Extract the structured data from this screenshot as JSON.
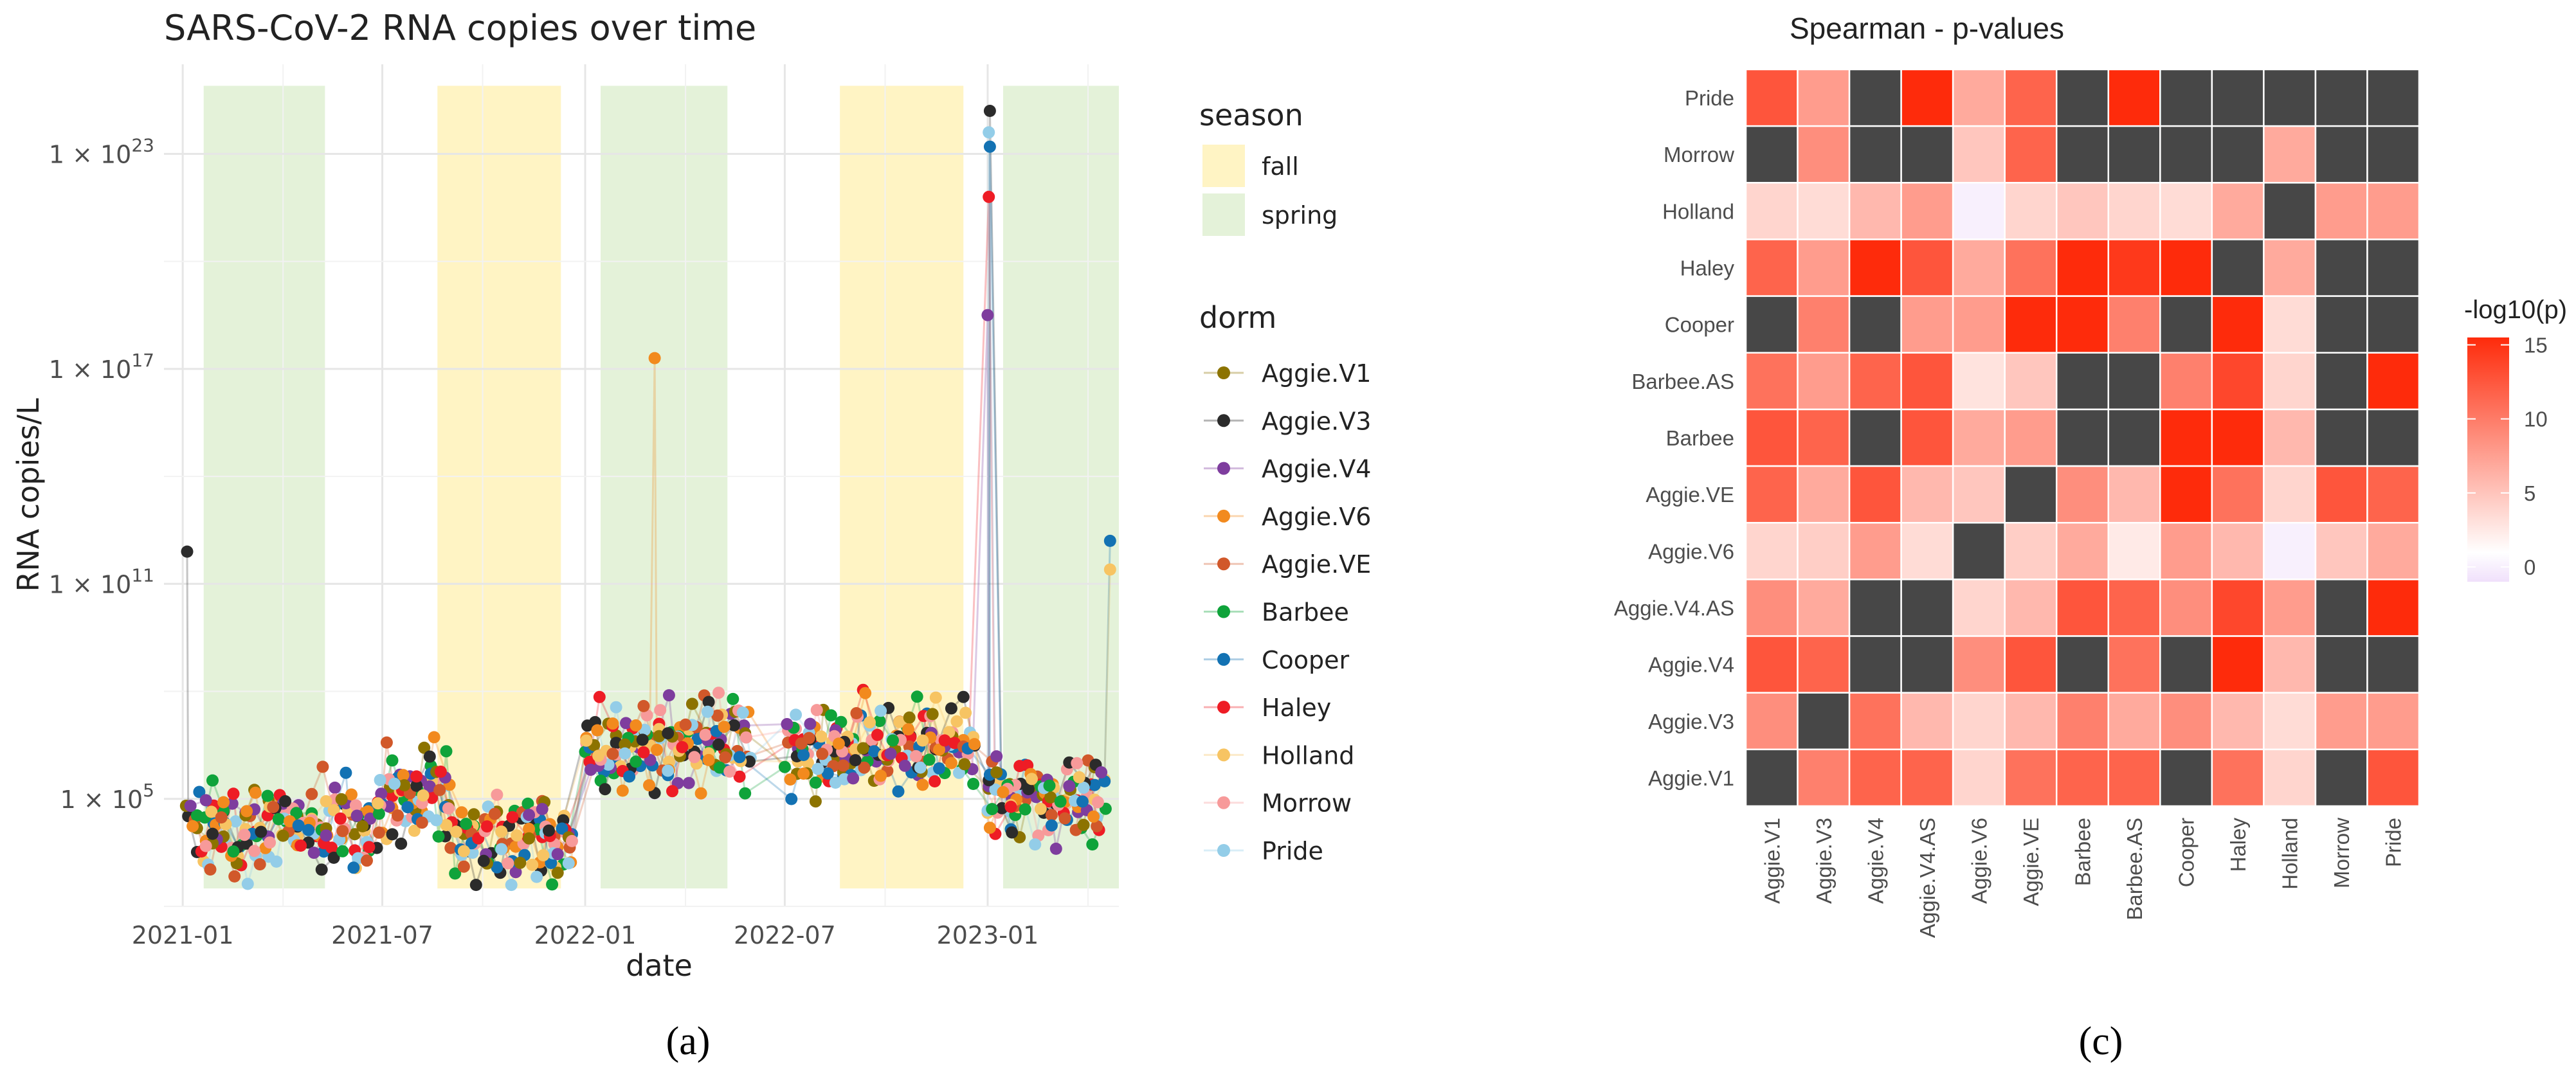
{
  "chart_data": [
    {
      "panel_label": "(a)",
      "type": "line",
      "title": "SARS-CoV-2 RNA copies over time",
      "xlabel": "date",
      "ylabel": "RNA copies/L",
      "yscale": "log10",
      "ylim_log10": [
        2.0,
        25.5
      ],
      "xlim": [
        "2020-12-15",
        "2023-04-30"
      ],
      "x_ticks": [
        "2021-01",
        "2021-07",
        "2022-01",
        "2022-07",
        "2023-01"
      ],
      "y_ticks": [
        {
          "value_log10": 5,
          "base": "1 × 10",
          "exp": "5"
        },
        {
          "value_log10": 11,
          "base": "1 × 10",
          "exp": "11"
        },
        {
          "value_log10": 17,
          "base": "1 × 10",
          "exp": "17"
        },
        {
          "value_log10": 23,
          "base": "1 × 10",
          "exp": "23"
        }
      ],
      "grid": true,
      "season_title": "season",
      "seasons": [
        {
          "name": "fall",
          "color": "#FFF4C4"
        },
        {
          "name": "spring",
          "color": "#E4F2D9"
        }
      ],
      "season_bands": [
        {
          "season": "spring",
          "start": "2021-01-20",
          "end": "2021-05-10"
        },
        {
          "season": "fall",
          "start": "2021-08-20",
          "end": "2021-12-10"
        },
        {
          "season": "spring",
          "start": "2022-01-15",
          "end": "2022-05-10"
        },
        {
          "season": "fall",
          "start": "2022-08-20",
          "end": "2022-12-10"
        },
        {
          "season": "spring",
          "start": "2023-01-15",
          "end": "2023-04-30"
        }
      ],
      "dorm_title": "dorm",
      "dorms": [
        {
          "name": "Aggie.V1",
          "color": "#8C7300"
        },
        {
          "name": "Aggie.V3",
          "color": "#2B2B2B"
        },
        {
          "name": "Aggie.V4",
          "color": "#7E3D9E"
        },
        {
          "name": "Aggie.V6",
          "color": "#F28A1E"
        },
        {
          "name": "Aggie.VE",
          "color": "#D1582A"
        },
        {
          "name": "Barbee",
          "color": "#0FA33A"
        },
        {
          "name": "Cooper",
          "color": "#1372B3"
        },
        {
          "name": "Haley",
          "color": "#EE1C25"
        },
        {
          "name": "Holland",
          "color": "#F7C463"
        },
        {
          "name": "Morrow",
          "color": "#F79A9A"
        },
        {
          "name": "Pride",
          "color": "#93CDE8"
        }
      ],
      "highlights": [
        {
          "series": "Aggie.V3",
          "date": "2021-01-05",
          "log10": 11.9
        },
        {
          "series": "Aggie.V6",
          "date": "2022-03-05",
          "log10": 17.3
        },
        {
          "series": "Aggie.V3",
          "date": "2023-01-03",
          "log10": 24.2
        },
        {
          "series": "Pride",
          "date": "2023-01-02",
          "log10": 23.6
        },
        {
          "series": "Cooper",
          "date": "2023-01-03",
          "log10": 23.2
        },
        {
          "series": "Haley",
          "date": "2023-01-02",
          "log10": 21.8
        },
        {
          "series": "Aggie.V4",
          "date": "2023-01-01",
          "log10": 18.5
        },
        {
          "series": "Cooper",
          "date": "2023-04-22",
          "log10": 12.2
        },
        {
          "series": "Holland",
          "date": "2023-04-22",
          "log10": 11.4
        }
      ]
    },
    {
      "panel_label": "(c)",
      "type": "heatmap",
      "title": "Spearman - p-values",
      "rows": [
        "Pride",
        "Morrow",
        "Holland",
        "Haley",
        "Cooper",
        "Barbee.AS",
        "Barbee",
        "Aggie.VE",
        "Aggie.V6",
        "Aggie.V4.AS",
        "Aggie.V4",
        "Aggie.V3",
        "Aggie.V1"
      ],
      "columns": [
        "Aggie.V1",
        "Aggie.V3",
        "Aggie.V4",
        "Aggie.V4.AS",
        "Aggie.V6",
        "Aggie.VE",
        "Barbee",
        "Barbee.AS",
        "Cooper",
        "Haley",
        "Holland",
        "Morrow",
        "Pride"
      ],
      "values": [
        [
          12,
          7,
          null,
          15,
          6,
          11,
          null,
          15,
          null,
          null,
          null,
          null,
          null
        ],
        [
          null,
          8,
          null,
          null,
          4,
          11,
          null,
          null,
          null,
          null,
          6,
          null,
          null
        ],
        [
          3,
          2.5,
          5,
          7,
          -0.5,
          3,
          4,
          3,
          2.5,
          6,
          null,
          7,
          7
        ],
        [
          11,
          7,
          15,
          12,
          6,
          10,
          15,
          14,
          15,
          null,
          6,
          null,
          null
        ],
        [
          null,
          9,
          null,
          7,
          7,
          15,
          15,
          9,
          null,
          15,
          2.5,
          null,
          null
        ],
        [
          10,
          7,
          11,
          12,
          2,
          4,
          null,
          null,
          9,
          13,
          3,
          null,
          15
        ],
        [
          12,
          11,
          null,
          12,
          6,
          7,
          null,
          null,
          15,
          15,
          5,
          null,
          null
        ],
        [
          11,
          6,
          12,
          5,
          4,
          null,
          8,
          5,
          15,
          10,
          3,
          12,
          11
        ],
        [
          3,
          3.5,
          7,
          2.5,
          null,
          3.5,
          6,
          1.5,
          7,
          5,
          -0.5,
          4,
          6
        ],
        [
          8,
          6,
          null,
          null,
          3,
          5,
          12,
          11,
          8,
          13,
          7,
          null,
          15
        ],
        [
          12,
          11,
          null,
          null,
          8,
          12,
          null,
          10,
          null,
          15,
          5,
          null,
          null
        ],
        [
          8,
          null,
          10,
          5,
          3,
          5,
          9,
          6,
          8,
          5,
          2.5,
          7,
          7
        ],
        [
          null,
          9,
          11,
          11,
          3,
          10,
          11,
          11,
          null,
          10,
          3,
          null,
          12
        ]
      ],
      "na_color": "#474747",
      "legend_title": "-log10(p)",
      "legend_ticks": [
        0,
        5,
        10,
        15
      ],
      "color_low": "#F0E0FB",
      "color_mid": "#FFFFFF",
      "color_high": "#FE2B0B",
      "value_range": [
        -1,
        15.5
      ]
    }
  ]
}
